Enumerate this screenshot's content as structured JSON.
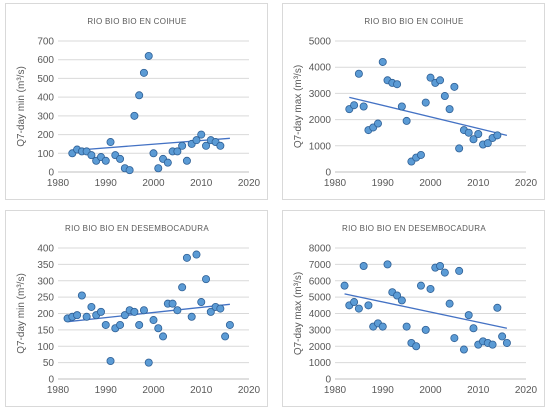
{
  "colors": {
    "marker_fill": "#5b9bd5",
    "marker_edge": "#2e5f95",
    "trend": "#4472c4",
    "grid": "#d9d9d9",
    "axis": "#bfbfbf",
    "text": "#595959"
  },
  "chart_data": [
    {
      "type": "scatter",
      "title": "RIO BIO BIO EN COIHUE",
      "ylabel": "Q7-day min (m³/s)",
      "xlim": [
        1980,
        2020
      ],
      "ylim": [
        0,
        700
      ],
      "xticks": [
        1980,
        1990,
        2000,
        2010,
        2020
      ],
      "yticks": [
        0,
        100,
        200,
        300,
        400,
        500,
        600,
        700
      ],
      "grid": true,
      "trendline": [
        [
          1983,
          115
        ],
        [
          2016,
          180
        ]
      ],
      "x": [
        1983,
        1984,
        1985,
        1986,
        1987,
        1988,
        1989,
        1990,
        1991,
        1992,
        1993,
        1994,
        1995,
        1996,
        1997,
        1998,
        1999,
        2000,
        2001,
        2002,
        2003,
        2004,
        2005,
        2006,
        2007,
        2008,
        2009,
        2010,
        2011,
        2012,
        2013,
        2014
      ],
      "y": [
        100,
        120,
        110,
        110,
        90,
        60,
        80,
        60,
        160,
        90,
        70,
        20,
        10,
        300,
        410,
        530,
        620,
        100,
        20,
        70,
        50,
        110,
        110,
        140,
        60,
        150,
        170,
        200,
        140,
        170,
        160,
        140
      ]
    },
    {
      "type": "scatter",
      "title": "RIO BIO BIO EN COIHUE",
      "ylabel": "Q7-day max (m³/s)",
      "xlim": [
        1980,
        2020
      ],
      "ylim": [
        0,
        5000
      ],
      "xticks": [
        1980,
        1990,
        2000,
        2010,
        2020
      ],
      "yticks": [
        0,
        1000,
        2000,
        3000,
        4000,
        5000
      ],
      "grid": true,
      "trendline": [
        [
          1983,
          2850
        ],
        [
          2016,
          1400
        ]
      ],
      "x": [
        1983,
        1984,
        1985,
        1986,
        1987,
        1988,
        1989,
        1990,
        1991,
        1992,
        1993,
        1994,
        1995,
        1996,
        1997,
        1998,
        1999,
        2000,
        2001,
        2002,
        2003,
        2004,
        2005,
        2006,
        2007,
        2008,
        2009,
        2010,
        2011,
        2012,
        2013,
        2014
      ],
      "y": [
        2400,
        2550,
        3750,
        2500,
        1600,
        1700,
        1850,
        4200,
        3500,
        3400,
        3350,
        2500,
        1950,
        400,
        550,
        650,
        2650,
        3600,
        3400,
        3500,
        2900,
        2400,
        3250,
        900,
        1600,
        1500,
        1250,
        1450,
        1050,
        1100,
        1300,
        1400
      ]
    },
    {
      "type": "scatter",
      "title": "RIO BIO BIO EN DESEMBOCADURA",
      "ylabel": "Q7-day min (m³/s)",
      "xlim": [
        1980,
        2020
      ],
      "ylim": [
        0,
        400
      ],
      "xticks": [
        1980,
        1990,
        2000,
        2010,
        2020
      ],
      "yticks": [
        0,
        50,
        100,
        150,
        200,
        250,
        300,
        350,
        400
      ],
      "grid": true,
      "trendline": [
        [
          1982,
          175
        ],
        [
          2016,
          228
        ]
      ],
      "x": [
        1982,
        1983,
        1984,
        1985,
        1986,
        1987,
        1988,
        1989,
        1990,
        1991,
        1992,
        1993,
        1994,
        1995,
        1996,
        1997,
        1998,
        1999,
        2000,
        2001,
        2002,
        2003,
        2004,
        2005,
        2006,
        2007,
        2008,
        2009,
        2010,
        2011,
        2012,
        2013,
        2014,
        2015,
        2016
      ],
      "y": [
        185,
        190,
        195,
        255,
        190,
        220,
        195,
        205,
        165,
        55,
        155,
        165,
        195,
        210,
        205,
        165,
        210,
        50,
        180,
        155,
        130,
        230,
        230,
        210,
        280,
        370,
        190,
        380,
        235,
        305,
        205,
        220,
        215,
        130,
        165
      ]
    },
    {
      "type": "scatter",
      "title": "RIO BIO BIO EN DESEMBOCADURA",
      "ylabel": "Q7-day max (m³/s)",
      "xlim": [
        1980,
        2020
      ],
      "ylim": [
        0,
        8000
      ],
      "xticks": [
        1980,
        1990,
        2000,
        2010,
        2020
      ],
      "yticks": [
        0,
        1000,
        2000,
        3000,
        4000,
        5000,
        6000,
        7000,
        8000
      ],
      "grid": true,
      "trendline": [
        [
          1982,
          5200
        ],
        [
          2016,
          3100
        ]
      ],
      "x": [
        1982,
        1983,
        1984,
        1985,
        1986,
        1987,
        1988,
        1989,
        1990,
        1991,
        1992,
        1993,
        1994,
        1995,
        1996,
        1997,
        1998,
        1999,
        2000,
        2001,
        2002,
        2003,
        2004,
        2005,
        2006,
        2007,
        2008,
        2009,
        2010,
        2011,
        2012,
        2013,
        2014,
        2015,
        2016
      ],
      "y": [
        5700,
        4500,
        4700,
        4300,
        6900,
        4500,
        3200,
        3400,
        3200,
        7000,
        5300,
        5100,
        4800,
        3200,
        2200,
        2000,
        5700,
        3000,
        5500,
        6800,
        6900,
        6500,
        4600,
        2500,
        6600,
        1800,
        3900,
        3100,
        2100,
        2300,
        2200,
        2100,
        4350,
        2600,
        2200
      ]
    }
  ]
}
